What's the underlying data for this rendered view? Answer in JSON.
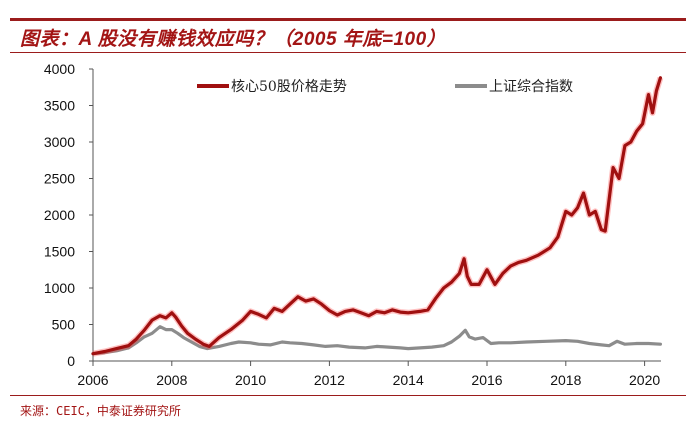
{
  "header": {
    "title": "图表：A 股没有赚钱效应吗？（2005 年底=100）"
  },
  "footer": {
    "source": "来源：CEIC，中泰证券研究所"
  },
  "colors": {
    "accent": "#9b1c1c",
    "series_core50": "#a01010",
    "series_sse": "#8c8c8c"
  },
  "chart_data": {
    "type": "line",
    "title": "图表：A 股没有赚钱效应吗？（2005 年底=100）",
    "xlabel": "",
    "ylabel": "",
    "ylim": [
      0,
      4000
    ],
    "xlim": [
      2006,
      2020.4
    ],
    "yticks": [
      0,
      500,
      1000,
      1500,
      2000,
      2500,
      3000,
      3500,
      4000
    ],
    "xticks": [
      2006,
      2008,
      2010,
      2012,
      2014,
      2016,
      2018,
      2020
    ],
    "grid": false,
    "legend_position": "top",
    "legend": [
      "核心50股价格走势",
      "上证综合指数"
    ],
    "series": [
      {
        "name": "核心50股价格走势",
        "color": "#a01010",
        "x": [
          2006.0,
          2006.3,
          2006.6,
          2006.9,
          2007.1,
          2007.3,
          2007.5,
          2007.7,
          2007.85,
          2008.0,
          2008.1,
          2008.25,
          2008.4,
          2008.6,
          2008.8,
          2008.95,
          2009.2,
          2009.5,
          2009.8,
          2010.0,
          2010.2,
          2010.4,
          2010.6,
          2010.8,
          2011.0,
          2011.2,
          2011.4,
          2011.6,
          2011.8,
          2012.0,
          2012.2,
          2012.4,
          2012.6,
          2012.8,
          2013.0,
          2013.2,
          2013.4,
          2013.6,
          2013.8,
          2014.0,
          2014.3,
          2014.5,
          2014.7,
          2014.9,
          2015.1,
          2015.3,
          2015.42,
          2015.5,
          2015.6,
          2015.8,
          2016.0,
          2016.2,
          2016.4,
          2016.6,
          2016.8,
          2017.0,
          2017.3,
          2017.6,
          2017.8,
          2018.0,
          2018.15,
          2018.3,
          2018.45,
          2018.6,
          2018.75,
          2018.9,
          2019.0,
          2019.2,
          2019.35,
          2019.5,
          2019.65,
          2019.8,
          2019.95,
          2020.1,
          2020.2,
          2020.3,
          2020.4
        ],
        "values": [
          100,
          130,
          170,
          210,
          300,
          420,
          560,
          620,
          590,
          660,
          600,
          480,
          380,
          300,
          230,
          200,
          320,
          430,
          560,
          680,
          640,
          590,
          720,
          680,
          780,
          880,
          820,
          850,
          780,
          690,
          630,
          680,
          700,
          660,
          620,
          680,
          660,
          700,
          670,
          660,
          680,
          700,
          860,
          1000,
          1080,
          1200,
          1400,
          1160,
          1050,
          1050,
          1250,
          1050,
          1200,
          1300,
          1350,
          1380,
          1450,
          1550,
          1700,
          2050,
          2000,
          2100,
          2300,
          2000,
          2050,
          1800,
          1780,
          2650,
          2500,
          2950,
          3000,
          3150,
          3250,
          3650,
          3400,
          3700,
          3880
        ]
      },
      {
        "name": "上证综合指数",
        "color": "#8c8c8c",
        "x": [
          2006.0,
          2006.3,
          2006.6,
          2006.9,
          2007.1,
          2007.3,
          2007.5,
          2007.7,
          2007.85,
          2008.0,
          2008.15,
          2008.3,
          2008.5,
          2008.7,
          2008.9,
          2009.2,
          2009.5,
          2009.7,
          2010.0,
          2010.2,
          2010.5,
          2010.8,
          2011.0,
          2011.3,
          2011.6,
          2011.9,
          2012.2,
          2012.5,
          2012.9,
          2013.2,
          2013.5,
          2013.8,
          2014.0,
          2014.3,
          2014.6,
          2014.9,
          2015.1,
          2015.3,
          2015.45,
          2015.55,
          2015.7,
          2015.9,
          2016.1,
          2016.3,
          2016.6,
          2017.0,
          2017.5,
          2018.0,
          2018.3,
          2018.6,
          2018.9,
          2019.1,
          2019.3,
          2019.5,
          2019.8,
          2020.1,
          2020.4
        ],
        "values": [
          100,
          115,
          140,
          180,
          250,
          330,
          380,
          470,
          430,
          430,
          380,
          320,
          260,
          200,
          170,
          200,
          240,
          260,
          250,
          230,
          220,
          260,
          250,
          240,
          220,
          200,
          210,
          190,
          180,
          200,
          190,
          180,
          170,
          180,
          190,
          210,
          260,
          340,
          420,
          330,
          300,
          320,
          240,
          250,
          250,
          260,
          270,
          280,
          270,
          240,
          220,
          210,
          270,
          230,
          240,
          240,
          230
        ]
      }
    ]
  }
}
